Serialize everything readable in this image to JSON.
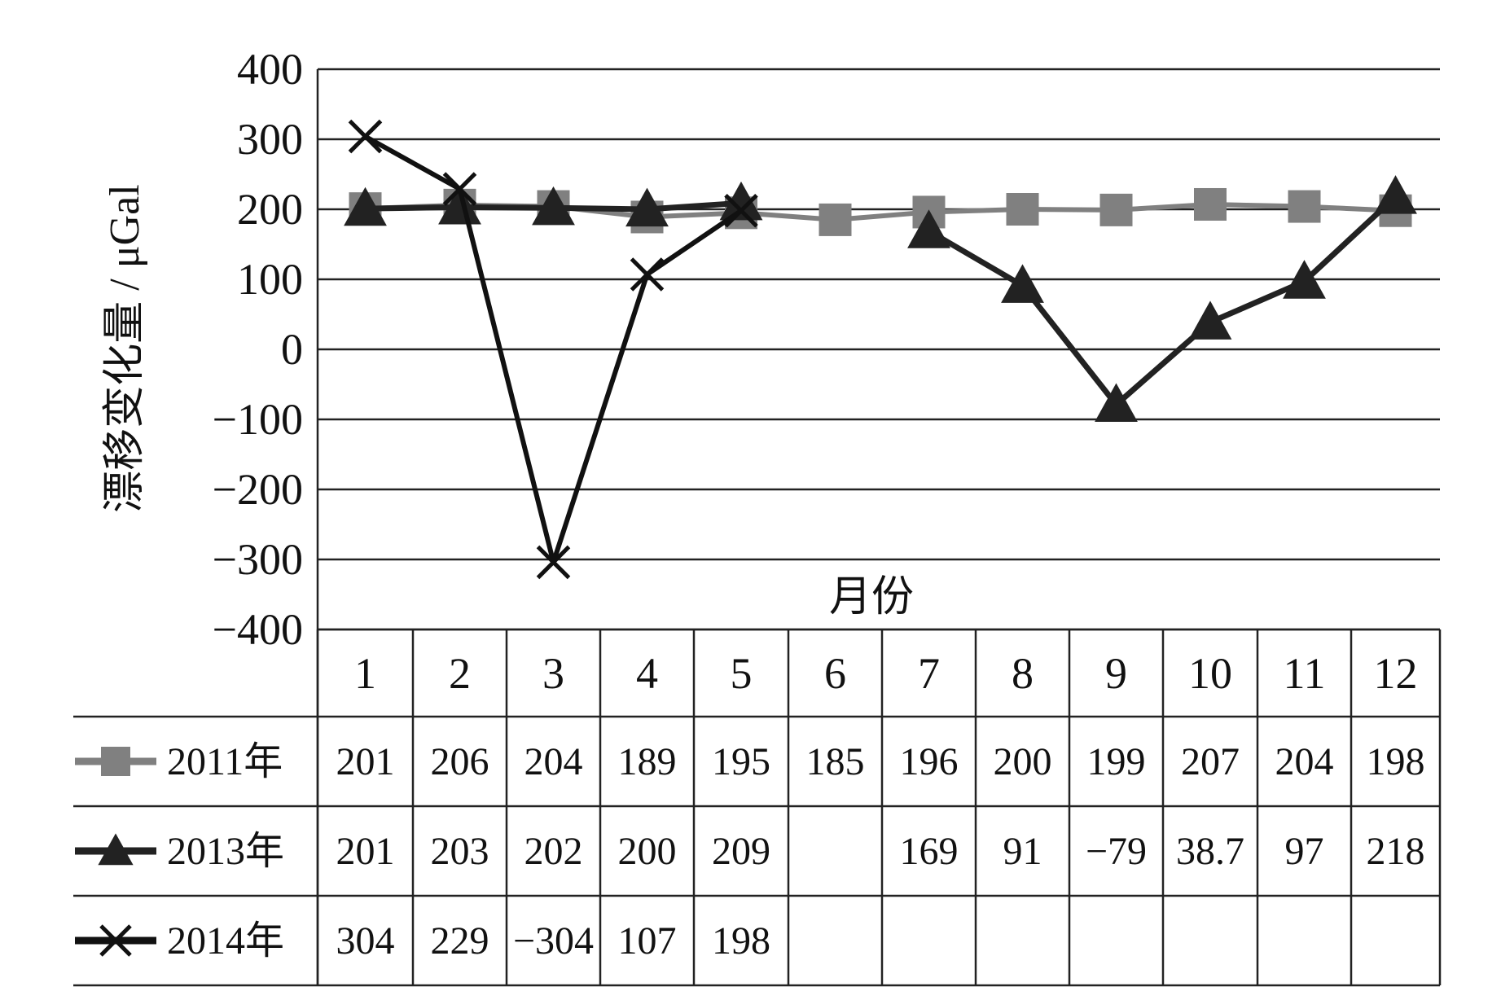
{
  "chart_data": {
    "type": "line",
    "ylabel": "漂移变化量 / μGal",
    "xlabel": "月份",
    "ylim": [
      -400,
      400
    ],
    "yticks": [
      "400",
      "300",
      "200",
      "100",
      "0",
      "−100",
      "−200",
      "−300",
      "−400"
    ],
    "categories": [
      "1",
      "2",
      "3",
      "4",
      "5",
      "6",
      "7",
      "8",
      "9",
      "10",
      "11",
      "12"
    ],
    "grid": true,
    "legend": "data-table-left",
    "series": [
      {
        "name": "2011年",
        "marker": "square",
        "color": "#808080",
        "values": [
          201,
          206,
          204,
          189,
          195,
          185,
          196,
          200,
          199,
          207,
          204,
          198
        ],
        "labels": [
          "201",
          "206",
          "204",
          "189",
          "195",
          "185",
          "196",
          "200",
          "199",
          "207",
          "204",
          "198"
        ]
      },
      {
        "name": "2013年",
        "marker": "triangle",
        "color": "#222222",
        "values": [
          201,
          203,
          202,
          200,
          209,
          null,
          169,
          91,
          -79,
          38.7,
          97,
          218
        ],
        "labels": [
          "201",
          "203",
          "202",
          "200",
          "209",
          "",
          "169",
          "91",
          "−79",
          "38.7",
          "97",
          "218"
        ]
      },
      {
        "name": "2014年",
        "marker": "x",
        "color": "#111111",
        "values": [
          304,
          229,
          -304,
          107,
          198,
          null,
          null,
          null,
          null,
          null,
          null,
          null
        ],
        "labels": [
          "304",
          "229",
          "−304",
          "107",
          "198",
          "",
          "",
          "",
          "",
          "",
          "",
          ""
        ]
      }
    ]
  }
}
